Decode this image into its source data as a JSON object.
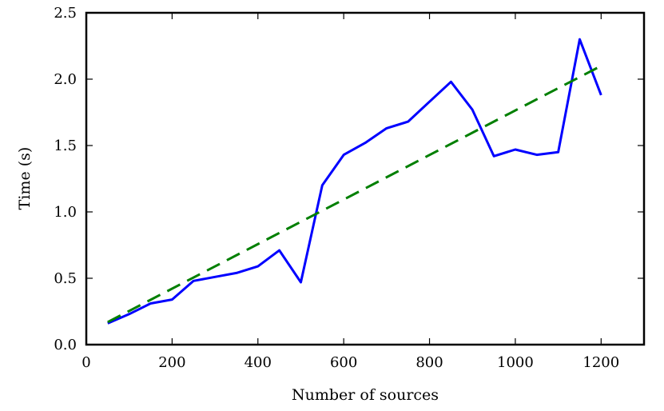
{
  "chart_data": {
    "type": "line",
    "xlabel": "Number of sources",
    "ylabel": "Time (s)",
    "xlim": [
      0,
      1300
    ],
    "ylim": [
      0.0,
      2.5
    ],
    "x_ticks": [
      0,
      200,
      400,
      600,
      800,
      1000,
      1200
    ],
    "y_ticks": [
      0.0,
      0.5,
      1.0,
      1.5,
      2.0,
      2.5
    ],
    "x_tick_labels": [
      "0",
      "200",
      "400",
      "600",
      "800",
      "1000",
      "1200"
    ],
    "y_tick_labels": [
      "0.0",
      "0.5",
      "1.0",
      "1.5",
      "2.0",
      "2.5"
    ],
    "grid": false,
    "legend": "none",
    "series": [
      {
        "style": "solid",
        "color": "#0000ff",
        "x": [
          50,
          100,
          150,
          200,
          250,
          300,
          350,
          400,
          450,
          500,
          550,
          600,
          650,
          700,
          750,
          800,
          850,
          900,
          950,
          1000,
          1050,
          1100,
          1150,
          1200
        ],
        "values": [
          0.16,
          0.23,
          0.31,
          0.34,
          0.48,
          0.51,
          0.54,
          0.59,
          0.71,
          0.47,
          1.2,
          1.43,
          1.52,
          1.63,
          1.68,
          1.83,
          1.98,
          1.77,
          1.42,
          1.47,
          1.43,
          1.45,
          2.3,
          1.88
        ]
      },
      {
        "style": "dashed",
        "color": "#007f00",
        "x": [
          50,
          1200
        ],
        "values": [
          0.17,
          2.1
        ]
      }
    ]
  }
}
